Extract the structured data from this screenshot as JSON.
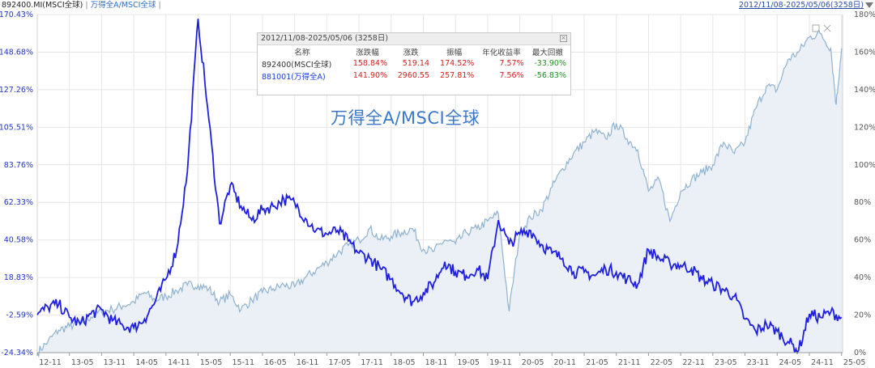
{
  "header": {
    "title_left": "892400.MI(MSCI全球)",
    "separator": "|",
    "title_right": "万得全A/MSCI全球",
    "separator_end": "|",
    "date_range": "2012/11/08-2025/05/06(3258日)"
  },
  "infobox": {
    "title": "2012/11/08-2025/05/06 (3258日)",
    "columns": [
      "名称",
      "涨跌幅",
      "涨跌",
      "振幅",
      "年化收益率",
      "最大回撤"
    ],
    "rows": [
      {
        "name": "892400(MSCI全球)",
        "change_pct": "158.84%",
        "change": "519.14",
        "amplitude": "174.52%",
        "annualized": "7.57%",
        "max_drawdown": "-33.90%"
      },
      {
        "name": "881001(万得全A)",
        "change_pct": "141.90%",
        "change": "2960.55",
        "amplitude": "257.81%",
        "annualized": "7.56%",
        "max_drawdown": "-56.83%"
      }
    ]
  },
  "watermark": "万得全A/MSCI全球",
  "colors": {
    "ratio_line": "#1f1fe0",
    "msci_line": "#8fb2d0",
    "msci_area": "#eaf0f6",
    "left_axis_text": "#2233cc",
    "right_axis_text": "#555555",
    "grid": "#e6e6e6"
  },
  "chart_data": {
    "type": "line",
    "x_ticks": [
      "12-11",
      "13-05",
      "13-11",
      "14-05",
      "14-11",
      "15-05",
      "15-11",
      "16-05",
      "16-11",
      "17-05",
      "17-11",
      "18-05",
      "18-11",
      "19-05",
      "19-11",
      "20-05",
      "20-11",
      "21-05",
      "21-11",
      "22-05",
      "22-11",
      "23-05",
      "23-11",
      "24-05",
      "24-11",
      "25-05"
    ],
    "left_axis": {
      "ticks": [
        "170.43%",
        "148.68%",
        "127.26%",
        "105.51%",
        "83.76%",
        "62.33%",
        "40.58%",
        "18.83%",
        "-2.59%",
        "-24.34%"
      ],
      "range": [
        -24.34,
        170.43
      ]
    },
    "right_axis": {
      "ticks": [
        "180%",
        "160%",
        "140%",
        "120%",
        "100%",
        "80%",
        "60%",
        "40%",
        "20%",
        "0%"
      ],
      "range": [
        0,
        180
      ]
    },
    "series": [
      {
        "name": "万得全A/MSCI全球",
        "axis": "left",
        "points": [
          [
            "12-11",
            -2.6
          ],
          [
            "13-01",
            2.0
          ],
          [
            "13-03",
            3.5
          ],
          [
            "13-05",
            -4.0
          ],
          [
            "13-07",
            -8.0
          ],
          [
            "13-09",
            -2.0
          ],
          [
            "13-11",
            0.5
          ],
          [
            "14-01",
            -6.0
          ],
          [
            "14-03",
            -9.0
          ],
          [
            "14-05",
            -10.0
          ],
          [
            "14-07",
            -5.0
          ],
          [
            "14-09",
            5.0
          ],
          [
            "14-11",
            18.0
          ],
          [
            "15-01",
            35.0
          ],
          [
            "15-03",
            80.0
          ],
          [
            "15-05",
            168.0
          ],
          [
            "15-07",
            110.0
          ],
          [
            "15-09",
            50.0
          ],
          [
            "15-11",
            72.0
          ],
          [
            "16-01",
            60.0
          ],
          [
            "16-03",
            52.0
          ],
          [
            "16-05",
            58.0
          ],
          [
            "16-07",
            60.0
          ],
          [
            "16-09",
            64.0
          ],
          [
            "16-11",
            62.0
          ],
          [
            "17-01",
            53.0
          ],
          [
            "17-03",
            46.0
          ],
          [
            "17-05",
            44.0
          ],
          [
            "17-07",
            46.0
          ],
          [
            "17-09",
            40.0
          ],
          [
            "17-11",
            33.0
          ],
          [
            "18-01",
            30.0
          ],
          [
            "18-03",
            24.0
          ],
          [
            "18-05",
            18.0
          ],
          [
            "18-07",
            10.0
          ],
          [
            "18-09",
            5.0
          ],
          [
            "18-11",
            10.0
          ],
          [
            "19-01",
            16.0
          ],
          [
            "19-03",
            28.0
          ],
          [
            "19-05",
            22.0
          ],
          [
            "19-07",
            20.0
          ],
          [
            "19-09",
            24.0
          ],
          [
            "19-11",
            18.0
          ],
          [
            "20-01",
            52.0
          ],
          [
            "20-03",
            38.0
          ],
          [
            "20-05",
            44.0
          ],
          [
            "20-07",
            46.0
          ],
          [
            "20-09",
            38.0
          ],
          [
            "20-11",
            33.0
          ],
          [
            "21-01",
            30.0
          ],
          [
            "21-03",
            22.0
          ],
          [
            "21-05",
            22.0
          ],
          [
            "21-07",
            20.0
          ],
          [
            "21-09",
            24.0
          ],
          [
            "21-11",
            22.0
          ],
          [
            "22-01",
            18.0
          ],
          [
            "22-03",
            15.0
          ],
          [
            "22-05",
            35.0
          ],
          [
            "22-07",
            30.0
          ],
          [
            "22-09",
            27.0
          ],
          [
            "22-11",
            26.0
          ],
          [
            "23-01",
            24.0
          ],
          [
            "23-03",
            18.0
          ],
          [
            "23-05",
            15.0
          ],
          [
            "23-07",
            12.0
          ],
          [
            "23-09",
            8.0
          ],
          [
            "23-11",
            -5.0
          ],
          [
            "24-01",
            -12.0
          ],
          [
            "24-03",
            -8.0
          ],
          [
            "24-05",
            -12.0
          ],
          [
            "24-07",
            -18.0
          ],
          [
            "24-09",
            -23.0
          ],
          [
            "24-11",
            -2.0
          ],
          [
            "25-01",
            -4.0
          ],
          [
            "25-03",
            -1.0
          ],
          [
            "25-05",
            -4.0
          ]
        ]
      },
      {
        "name": "MSCI全球",
        "axis": "right",
        "points": [
          [
            "12-11",
            0
          ],
          [
            "13-01",
            6
          ],
          [
            "13-03",
            12
          ],
          [
            "13-05",
            14
          ],
          [
            "13-07",
            16
          ],
          [
            "13-09",
            19
          ],
          [
            "13-11",
            22
          ],
          [
            "14-01",
            23
          ],
          [
            "14-03",
            25
          ],
          [
            "14-05",
            27
          ],
          [
            "14-07",
            32
          ],
          [
            "14-09",
            28
          ],
          [
            "14-11",
            30
          ],
          [
            "15-01",
            33
          ],
          [
            "15-03",
            36
          ],
          [
            "15-05",
            36
          ],
          [
            "15-07",
            34
          ],
          [
            "15-09",
            27
          ],
          [
            "15-11",
            31
          ],
          [
            "16-01",
            23
          ],
          [
            "16-03",
            28
          ],
          [
            "16-05",
            32
          ],
          [
            "16-07",
            34
          ],
          [
            "16-09",
            36
          ],
          [
            "16-11",
            35
          ],
          [
            "17-01",
            40
          ],
          [
            "17-03",
            44
          ],
          [
            "17-05",
            48
          ],
          [
            "17-07",
            53
          ],
          [
            "17-09",
            57
          ],
          [
            "17-11",
            60
          ],
          [
            "18-01",
            66
          ],
          [
            "18-03",
            60
          ],
          [
            "18-05",
            62
          ],
          [
            "18-07",
            64
          ],
          [
            "18-09",
            66
          ],
          [
            "18-11",
            55
          ],
          [
            "19-01",
            54
          ],
          [
            "19-03",
            60
          ],
          [
            "19-05",
            58
          ],
          [
            "19-07",
            64
          ],
          [
            "19-09",
            66
          ],
          [
            "19-11",
            70
          ],
          [
            "20-01",
            74
          ],
          [
            "20-03",
            22
          ],
          [
            "20-05",
            64
          ],
          [
            "20-07",
            72
          ],
          [
            "20-09",
            76
          ],
          [
            "20-11",
            88
          ],
          [
            "21-01",
            98
          ],
          [
            "21-03",
            106
          ],
          [
            "21-05",
            112
          ],
          [
            "21-07",
            118
          ],
          [
            "21-09",
            114
          ],
          [
            "21-11",
            122
          ],
          [
            "22-01",
            114
          ],
          [
            "22-03",
            108
          ],
          [
            "22-05",
            86
          ],
          [
            "22-07",
            92
          ],
          [
            "22-09",
            70
          ],
          [
            "22-11",
            86
          ],
          [
            "23-01",
            92
          ],
          [
            "23-03",
            96
          ],
          [
            "23-05",
            100
          ],
          [
            "23-07",
            112
          ],
          [
            "23-09",
            106
          ],
          [
            "23-11",
            112
          ],
          [
            "24-01",
            130
          ],
          [
            "24-03",
            142
          ],
          [
            "24-05",
            140
          ],
          [
            "24-07",
            156
          ],
          [
            "24-09",
            160
          ],
          [
            "24-11",
            168
          ],
          [
            "25-01",
            170
          ],
          [
            "25-03",
            162
          ],
          [
            "25-04",
            132
          ],
          [
            "25-05",
            162
          ]
        ]
      }
    ],
    "grid": true,
    "legend": "none"
  }
}
